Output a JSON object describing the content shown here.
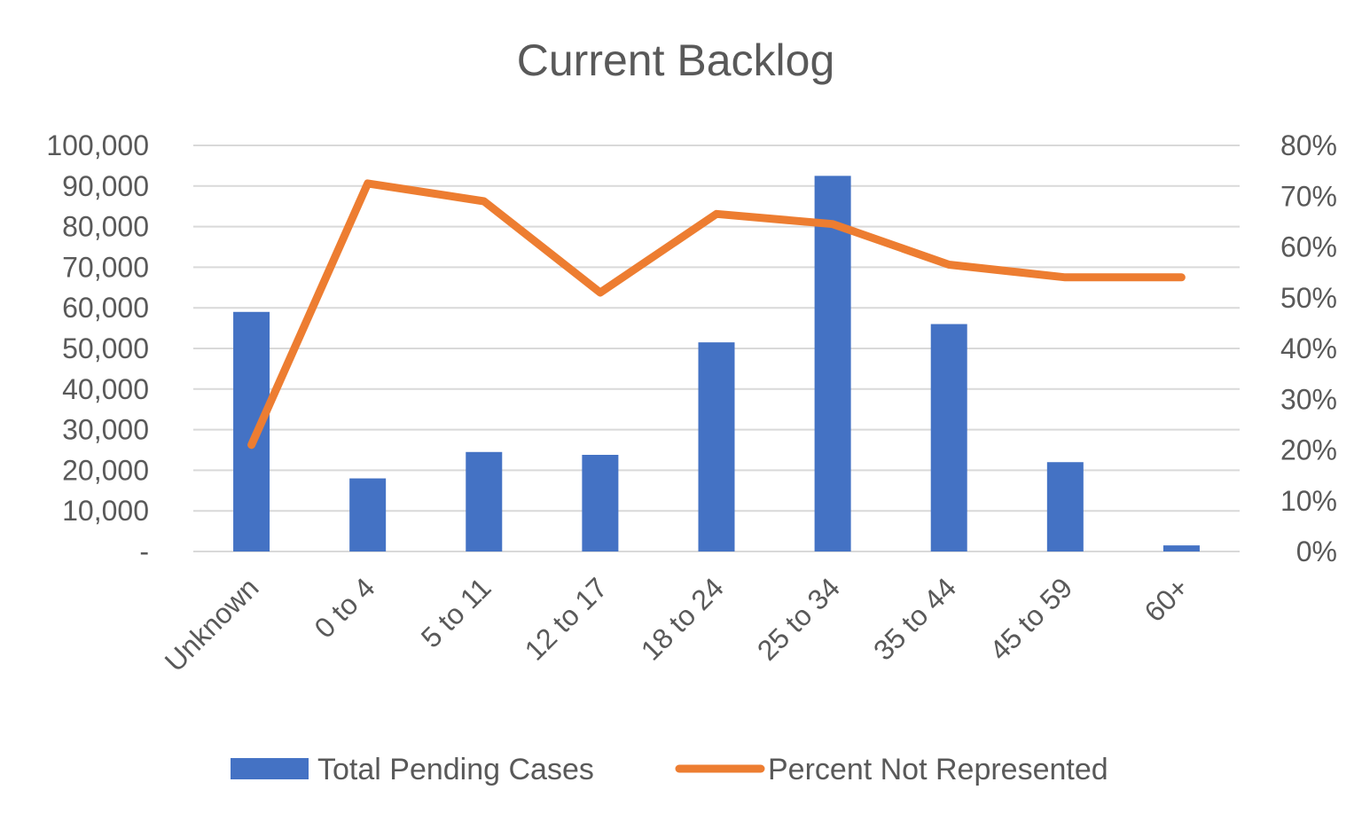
{
  "chart_data": {
    "type": "bar",
    "title": "Current Backlog",
    "categories": [
      "Unknown",
      "0 to 4",
      "5 to 11",
      "12 to 17",
      "18 to 24",
      "25 to 34",
      "35 to 44",
      "45 to 59",
      "60+"
    ],
    "series": [
      {
        "name": "Total Pending Cases",
        "type": "bar",
        "axis": "left",
        "color": "#4472C4",
        "values": [
          59000,
          18000,
          24500,
          23800,
          51500,
          92500,
          56000,
          22000,
          1500
        ]
      },
      {
        "name": "Percent Not Represented",
        "type": "line",
        "axis": "right",
        "color": "#ED7D31",
        "values": [
          0.21,
          0.725,
          0.69,
          0.51,
          0.665,
          0.645,
          0.565,
          0.54,
          0.54
        ]
      }
    ],
    "y_left": {
      "min": 0,
      "max": 100000,
      "ticks": [
        "-",
        "10,000",
        "20,000",
        "30,000",
        "40,000",
        "50,000",
        "60,000",
        "70,000",
        "80,000",
        "90,000",
        "100,000"
      ]
    },
    "y_right": {
      "min": 0,
      "max": 0.8,
      "ticks": [
        "0%",
        "10%",
        "20%",
        "30%",
        "40%",
        "50%",
        "60%",
        "70%",
        "80%"
      ]
    },
    "grid": true,
    "legend_position": "bottom",
    "gridline_color": "#D9D9D9",
    "text_color": "#595959"
  }
}
